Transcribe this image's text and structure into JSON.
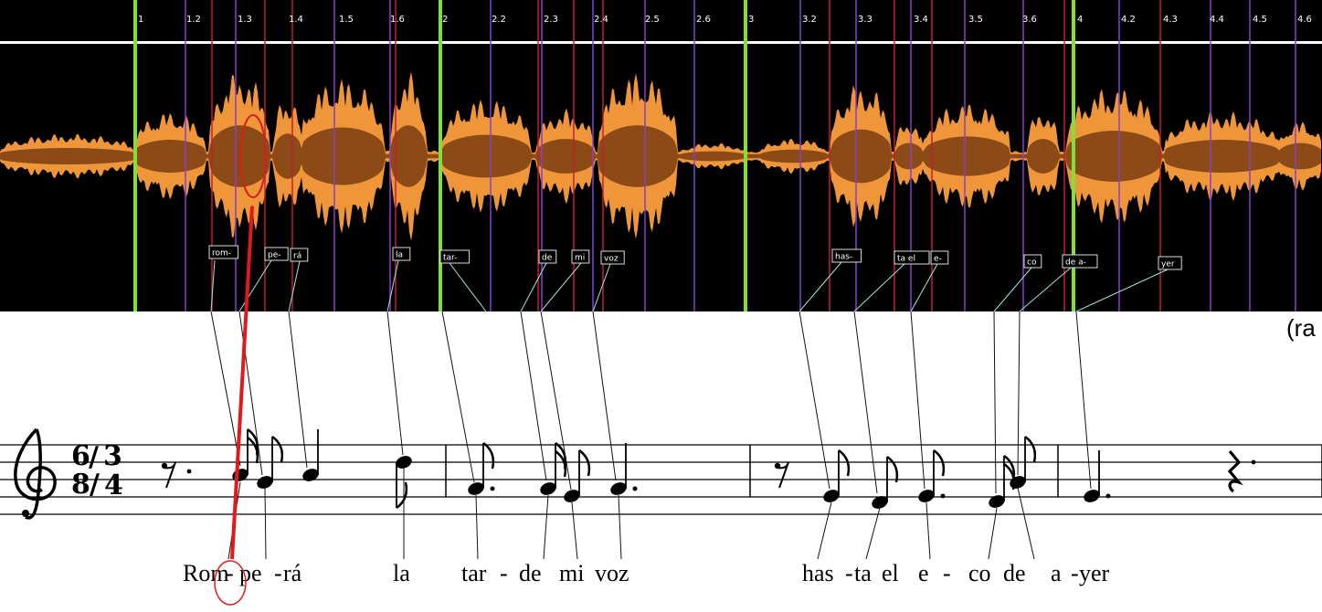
{
  "timeline": {
    "ticks": [
      "1",
      "1.2",
      "1.3",
      "1.4",
      "1.5",
      "1.6",
      "2",
      "2.2",
      "2.3",
      "2.4",
      "2.5",
      "2.6",
      "3",
      "3.2",
      "3.3",
      "3.4",
      "3.5",
      "3.6",
      "4",
      "4.2",
      "4.3",
      "4.4",
      "4.5",
      "4.6"
    ],
    "colors": {
      "bar": "#7ee03a",
      "beat": "#8a3fc8",
      "onset": "#c02030",
      "wave_outer": "#f0963a",
      "wave_inner": "#8c4a16",
      "link": "#9fe8e0"
    }
  },
  "lyric_tags": [
    "rom-",
    "pe-",
    "rá",
    "la",
    "tar-",
    "de",
    "mi",
    "voz",
    "has-",
    "ta el",
    "e-",
    "co",
    "de a-",
    "yer"
  ],
  "score": {
    "time_signature": {
      "top1": "6",
      "top2": "3",
      "bottom1": "8",
      "bottom2": "4",
      "slash": "/"
    },
    "lyric_words": [
      "Rom",
      "-",
      "pe",
      "-",
      "rá",
      "la",
      "tar",
      "-",
      "de",
      "mi",
      "voz",
      "has",
      "-",
      "ta",
      "el",
      "e",
      "-",
      "co",
      "de",
      "a",
      "-",
      "yer"
    ]
  },
  "corner_text": "(ra"
}
